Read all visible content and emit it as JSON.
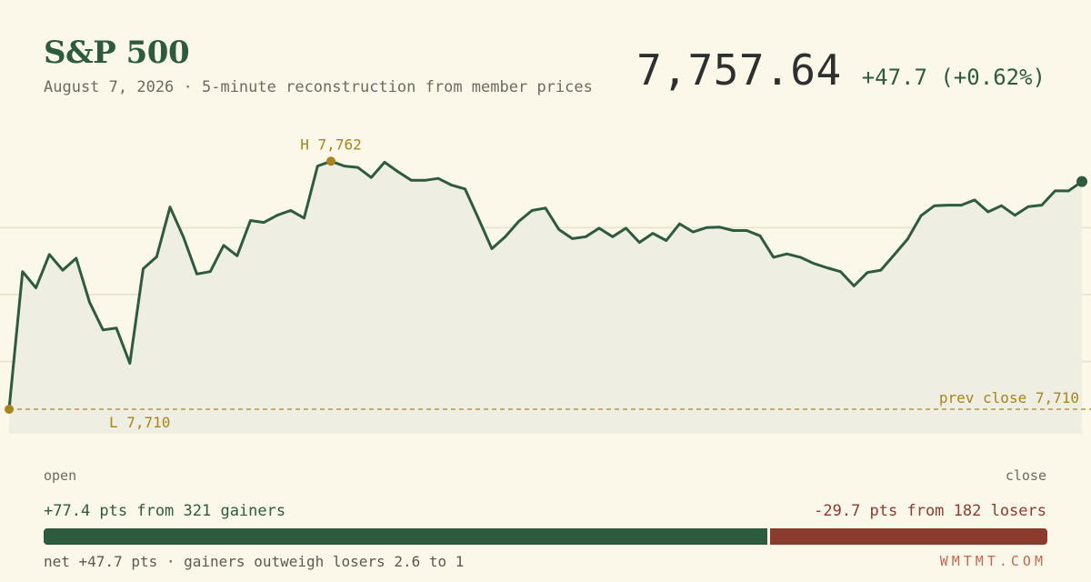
{
  "header": {
    "title": "S&P 500",
    "subtitle": "August 7, 2026 · 5-minute reconstruction from member prices",
    "price": "7,757.64",
    "change": "+47.7 (+0.62%)"
  },
  "colors": {
    "background": "#fbf8ea",
    "line": "#2e5a3e",
    "area": "#eeeee2",
    "accent": "#a8841e",
    "gain": "#2e5a3e",
    "loss": "#8b3a2e"
  },
  "chart_data": {
    "type": "line",
    "interval": "5-minute",
    "prev_close": 7710,
    "ylim": [
      7706,
      7769
    ],
    "gridlines_y": [
      7720,
      7734,
      7748
    ],
    "values": [
      7710.0,
      7738.8,
      7735.4,
      7742.4,
      7739.1,
      7741.6,
      7732.4,
      7726.6,
      7727.0,
      7719.6,
      7739.4,
      7741.9,
      7752.3,
      7746.0,
      7738.3,
      7738.8,
      7744.3,
      7742.1,
      7749.5,
      7749.1,
      7750.6,
      7751.6,
      7750.0,
      7760.9,
      7761.9,
      7760.9,
      7760.6,
      7758.5,
      7761.7,
      7759.7,
      7757.9,
      7757.9,
      7758.3,
      7756.9,
      7756.1,
      7749.9,
      7743.6,
      7746.1,
      7749.3,
      7751.6,
      7752.1,
      7747.6,
      7745.7,
      7746.1,
      7747.9,
      7746.1,
      7747.9,
      7744.9,
      7746.8,
      7745.3,
      7748.8,
      7747.1,
      7748.0,
      7748.1,
      7747.4,
      7747.4,
      7746.3,
      7741.8,
      7742.5,
      7741.8,
      7740.5,
      7739.6,
      7738.8,
      7735.8,
      7738.6,
      7739.1,
      7742.3,
      7745.6,
      7750.5,
      7752.6,
      7752.7,
      7752.7,
      7753.8,
      7751.3,
      7752.6,
      7750.6,
      7752.4,
      7752.7,
      7755.7,
      7755.7,
      7757.64
    ],
    "high_label": "H 7,762",
    "low_label": "L 7,710",
    "prev_close_label": "prev close 7,710",
    "xlabel_start": "open",
    "xlabel_end": "close"
  },
  "breadth": {
    "gainers_text": "+77.4 pts from 321 gainers",
    "losers_text": "-29.7 pts from 182 losers",
    "gainers_pts": 77.4,
    "losers_pts": 29.7,
    "net_text": "net +47.7 pts · gainers outweigh losers 2.6 to 1"
  },
  "footer": {
    "brand": "WMTMT.COM"
  }
}
